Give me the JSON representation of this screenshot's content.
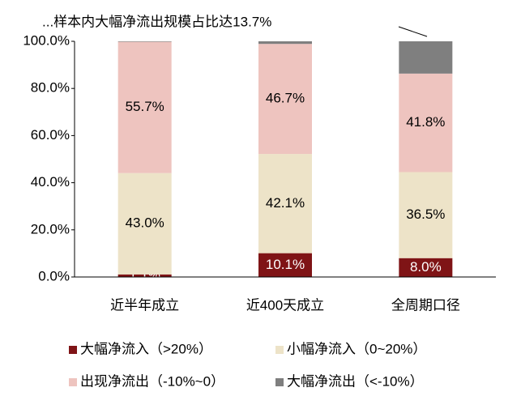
{
  "chart_data": {
    "type": "stacked_bar",
    "annotation": "...样本内大幅净流出规模占比达13.7%",
    "categories": [
      "近半年成立",
      "近400天成立",
      "全周期口径"
    ],
    "series": [
      {
        "name": "大幅净流入（>20%）",
        "color": "#7f1416",
        "label_color": "#ffffff",
        "values": [
          1.1,
          10.1,
          8.0
        ],
        "value_labels": [
          "1.1%",
          "10.1%",
          "8.0%"
        ]
      },
      {
        "name": "小幅净流入（0~20%）",
        "color": "#ede3c8",
        "label_color": "#000000",
        "values": [
          43.0,
          42.1,
          36.5
        ],
        "value_labels": [
          "43.0%",
          "42.1%",
          "36.5%"
        ]
      },
      {
        "name": "出现净流出（-10%~0）",
        "color": "#eec4bf",
        "label_color": "#000000",
        "values": [
          55.7,
          46.7,
          41.8
        ],
        "value_labels": [
          "55.7%",
          "46.7%",
          "41.8%"
        ]
      },
      {
        "name": "大幅净流出（<-10%）",
        "color": "#7f7f7f",
        "values": [
          0.2,
          1.1,
          13.7
        ]
      }
    ],
    "ylim": [
      0,
      100
    ],
    "yticks": [
      {
        "value": 0,
        "label": "0.0%"
      },
      {
        "value": 20,
        "label": "20.0%"
      },
      {
        "value": 40,
        "label": "40.0%"
      },
      {
        "value": 60,
        "label": "60.0%"
      },
      {
        "value": 80,
        "label": "80.0%"
      },
      {
        "value": 100,
        "label": "100.0%"
      }
    ]
  }
}
